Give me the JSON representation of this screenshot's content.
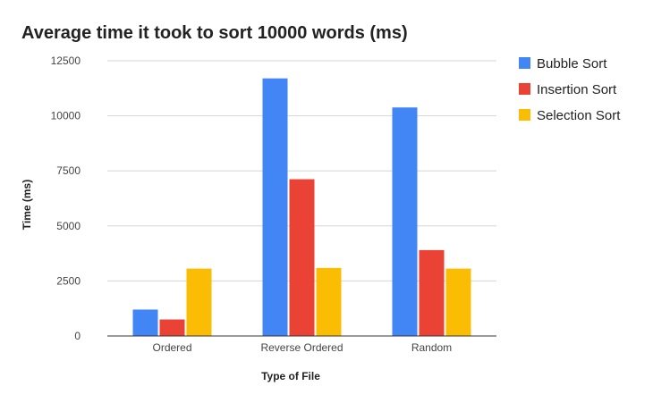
{
  "chart_data": {
    "type": "bar",
    "title": "Average time it took to sort 10000 words (ms)",
    "xlabel": "Type of File",
    "ylabel": "Time (ms)",
    "ylim": [
      0,
      12500
    ],
    "yticks": [
      0,
      2500,
      5000,
      7500,
      10000,
      12500
    ],
    "ytick_labels": [
      "0",
      "2500",
      "5000",
      "7500",
      "10000",
      "12500"
    ],
    "grid": true,
    "legend_position": "right",
    "categories": [
      "Ordered",
      "Reverse Ordered",
      "Random"
    ],
    "series": [
      {
        "name": "Bubble Sort",
        "color": "#4285f4",
        "values": [
          1200,
          11700,
          10380
        ]
      },
      {
        "name": "Insertion Sort",
        "color": "#ea4335",
        "values": [
          750,
          7120,
          3900
        ]
      },
      {
        "name": "Selection Sort",
        "color": "#fbbc04",
        "values": [
          3060,
          3090,
          3060
        ]
      }
    ]
  }
}
